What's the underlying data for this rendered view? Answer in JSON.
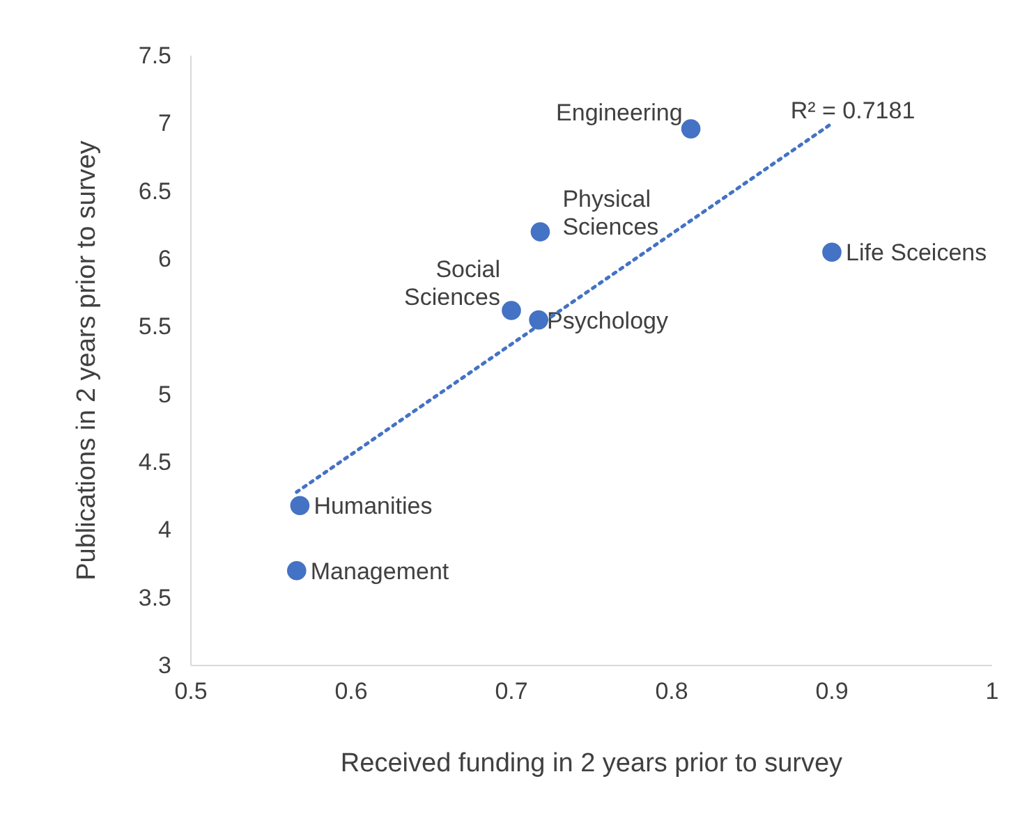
{
  "chart_data": {
    "type": "scatter",
    "xlabel": "Received funding in 2 years prior to survey",
    "ylabel": "Publications in 2 years prior to survey",
    "xlim": [
      0.5,
      1
    ],
    "xticks": [
      0.5,
      0.6,
      0.7,
      0.8,
      0.9,
      1
    ],
    "ylim": [
      3,
      7.5
    ],
    "yticks": [
      3,
      3.5,
      4,
      4.5,
      5,
      5.5,
      6,
      6.5,
      7,
      7.5
    ],
    "grid": false,
    "marker": "circle",
    "series": [
      {
        "name": "Engineering",
        "color": "#4472c4",
        "x": [
          0.812
        ],
        "values": [
          6.96
        ]
      },
      {
        "name": "Physical Sciences",
        "color": "#4472c4",
        "x": [
          0.718
        ],
        "values": [
          6.2
        ]
      },
      {
        "name": "Life Sceicens",
        "color": "#4472c4",
        "x": [
          0.9
        ],
        "values": [
          6.05
        ]
      },
      {
        "name": "Social Sciences",
        "color": "#4472c4",
        "x": [
          0.7
        ],
        "values": [
          5.62
        ]
      },
      {
        "name": "Psychology",
        "color": "#4472c4",
        "x": [
          0.717
        ],
        "values": [
          5.55
        ]
      },
      {
        "name": "Humanities",
        "color": "#4472c4",
        "x": [
          0.568
        ],
        "values": [
          4.18
        ]
      },
      {
        "name": "Management",
        "color": "#4472c4",
        "x": [
          0.566
        ],
        "values": [
          3.7
        ]
      },
      {
        "type": "line",
        "color": "#4472c4",
        "line_style": "dotted",
        "marker": "none",
        "x": [
          0.566,
          0.9
        ],
        "values": [
          4.28,
          7.0
        ]
      }
    ],
    "annotations": [
      "R² = 0.7181"
    ]
  }
}
